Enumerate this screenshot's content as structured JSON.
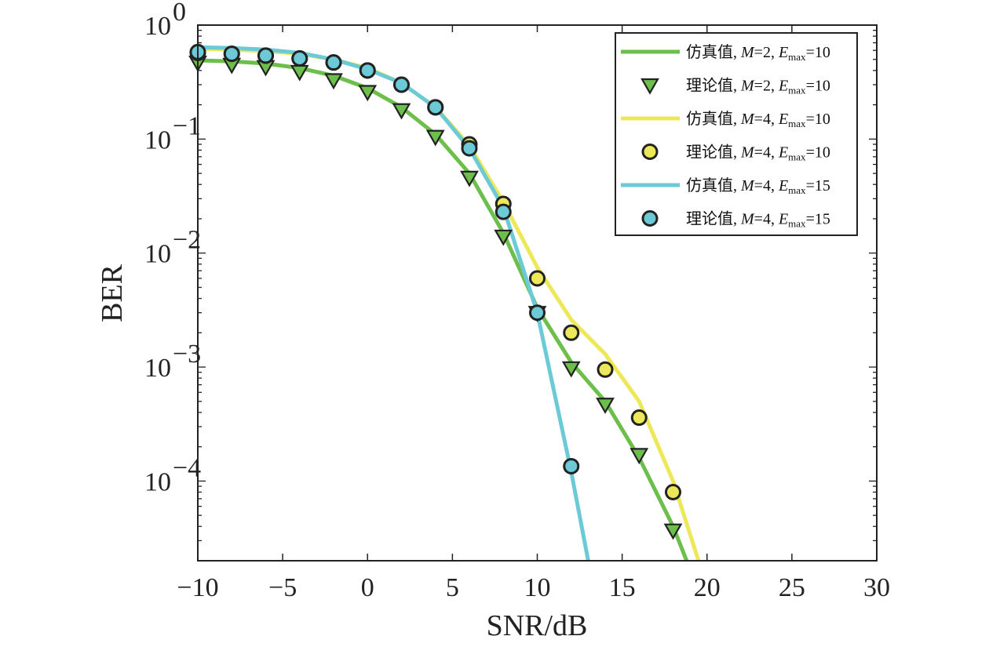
{
  "chart_data": {
    "type": "line",
    "xlabel": "SNR/dB",
    "ylabel": "BER",
    "xlim": [
      -10,
      30
    ],
    "ylim": [
      2e-05,
      1
    ],
    "yscale": "log",
    "x_ticks": [
      -10,
      -5,
      0,
      5,
      10,
      15,
      20,
      25,
      30
    ],
    "x_tick_labels": [
      "−10",
      "−5",
      "0",
      "5",
      "10",
      "15",
      "20",
      "25",
      "30"
    ],
    "y_ticks": [
      {
        "value": 1,
        "base": "10",
        "exp": "0"
      },
      {
        "value": 0.1,
        "base": "10",
        "exp": "−1"
      },
      {
        "value": 0.01,
        "base": "10",
        "exp": "−2"
      },
      {
        "value": 0.001,
        "base": "10",
        "exp": "−3"
      },
      {
        "value": 0.0001,
        "base": "10",
        "exp": "−4"
      }
    ],
    "grid": false,
    "legend_position": "top-right",
    "series": [
      {
        "name": "仿真值, M=2, Emax=10",
        "legend": {
          "prefix": "仿真值, ",
          "m": "M",
          "m_value": "=2, ",
          "e": "E",
          "e_sub": "max",
          "e_value": "=10"
        },
        "kind": "line",
        "color": "#6cbf4b",
        "x": [
          -10,
          -8,
          -6,
          -4,
          -2,
          0,
          2,
          4,
          6,
          8,
          10,
          12,
          14,
          16,
          18,
          18.8
        ],
        "y": [
          0.49,
          0.48,
          0.46,
          0.42,
          0.36,
          0.28,
          0.19,
          0.11,
          0.05,
          0.015,
          0.0033,
          0.0011,
          0.0005,
          0.00016,
          4e-05,
          2e-05
        ]
      },
      {
        "name": "理论值, M=2, Emax=10",
        "legend": {
          "prefix": "理论值, ",
          "m": "M",
          "m_value": "=2, ",
          "e": "E",
          "e_sub": "max",
          "e_value": "=10"
        },
        "kind": "marker",
        "marker": "triangle-down",
        "color": "#6cbf4b",
        "x": [
          -10,
          -8,
          -6,
          -4,
          -2,
          0,
          2,
          4,
          6,
          8,
          10,
          12,
          14,
          16,
          18
        ],
        "y": [
          0.47,
          0.45,
          0.43,
          0.39,
          0.33,
          0.26,
          0.18,
          0.105,
          0.046,
          0.014,
          0.003,
          0.00098,
          0.00047,
          0.00017,
          3.7e-05
        ]
      },
      {
        "name": "仿真值, M=4, Emax=10",
        "legend": {
          "prefix": "仿真值, ",
          "m": "M",
          "m_value": "=4, ",
          "e": "E",
          "e_sub": "max",
          "e_value": "=10"
        },
        "kind": "line",
        "color": "#ede85a",
        "x": [
          -10,
          -8,
          -6,
          -4,
          -2,
          0,
          2,
          4,
          6,
          8,
          10,
          12,
          14,
          16,
          18,
          19.5
        ],
        "y": [
          0.62,
          0.61,
          0.59,
          0.56,
          0.5,
          0.42,
          0.31,
          0.19,
          0.088,
          0.028,
          0.0075,
          0.0026,
          0.0013,
          0.0005,
          0.0001,
          2e-05
        ]
      },
      {
        "name": "理论值, M=4, Emax=10",
        "legend": {
          "prefix": "理论值, ",
          "m": "M",
          "m_value": "=4, ",
          "e": "E",
          "e_sub": "max",
          "e_value": "=10"
        },
        "kind": "marker",
        "marker": "circle",
        "color": "#ede85a",
        "x": [
          -10,
          -8,
          -6,
          -4,
          -2,
          0,
          2,
          4,
          6,
          8,
          10,
          12,
          14,
          16,
          18
        ],
        "y": [
          0.57,
          0.56,
          0.54,
          0.51,
          0.47,
          0.4,
          0.3,
          0.19,
          0.09,
          0.027,
          0.006,
          0.002,
          0.00095,
          0.00036,
          8e-05
        ]
      },
      {
        "name": "仿真值, M=4, Emax=15",
        "legend": {
          "prefix": "仿真值, ",
          "m": "M",
          "m_value": "=4, ",
          "e": "E",
          "e_sub": "max",
          "e_value": "=15"
        },
        "kind": "line",
        "color": "#6ccad6",
        "x": [
          -10,
          -8,
          -6,
          -4,
          -2,
          0,
          2,
          4,
          6,
          8,
          10,
          12,
          13
        ],
        "y": [
          0.64,
          0.63,
          0.61,
          0.57,
          0.5,
          0.41,
          0.31,
          0.19,
          0.083,
          0.025,
          0.003,
          0.00012,
          2e-05
        ]
      },
      {
        "name": "理论值,  M=4, Emax=15",
        "legend": {
          "prefix": "理论值,  ",
          "m": "M",
          "m_value": "=4, ",
          "e": "E",
          "e_sub": "max",
          "e_value": "=15"
        },
        "kind": "marker",
        "marker": "circle",
        "color": "#6ccad6",
        "x": [
          -10,
          -8,
          -6,
          -4,
          -2,
          0,
          2,
          4,
          6,
          8,
          10,
          12
        ],
        "y": [
          0.58,
          0.56,
          0.54,
          0.51,
          0.47,
          0.4,
          0.3,
          0.19,
          0.083,
          0.023,
          0.003,
          0.000135
        ]
      }
    ]
  }
}
